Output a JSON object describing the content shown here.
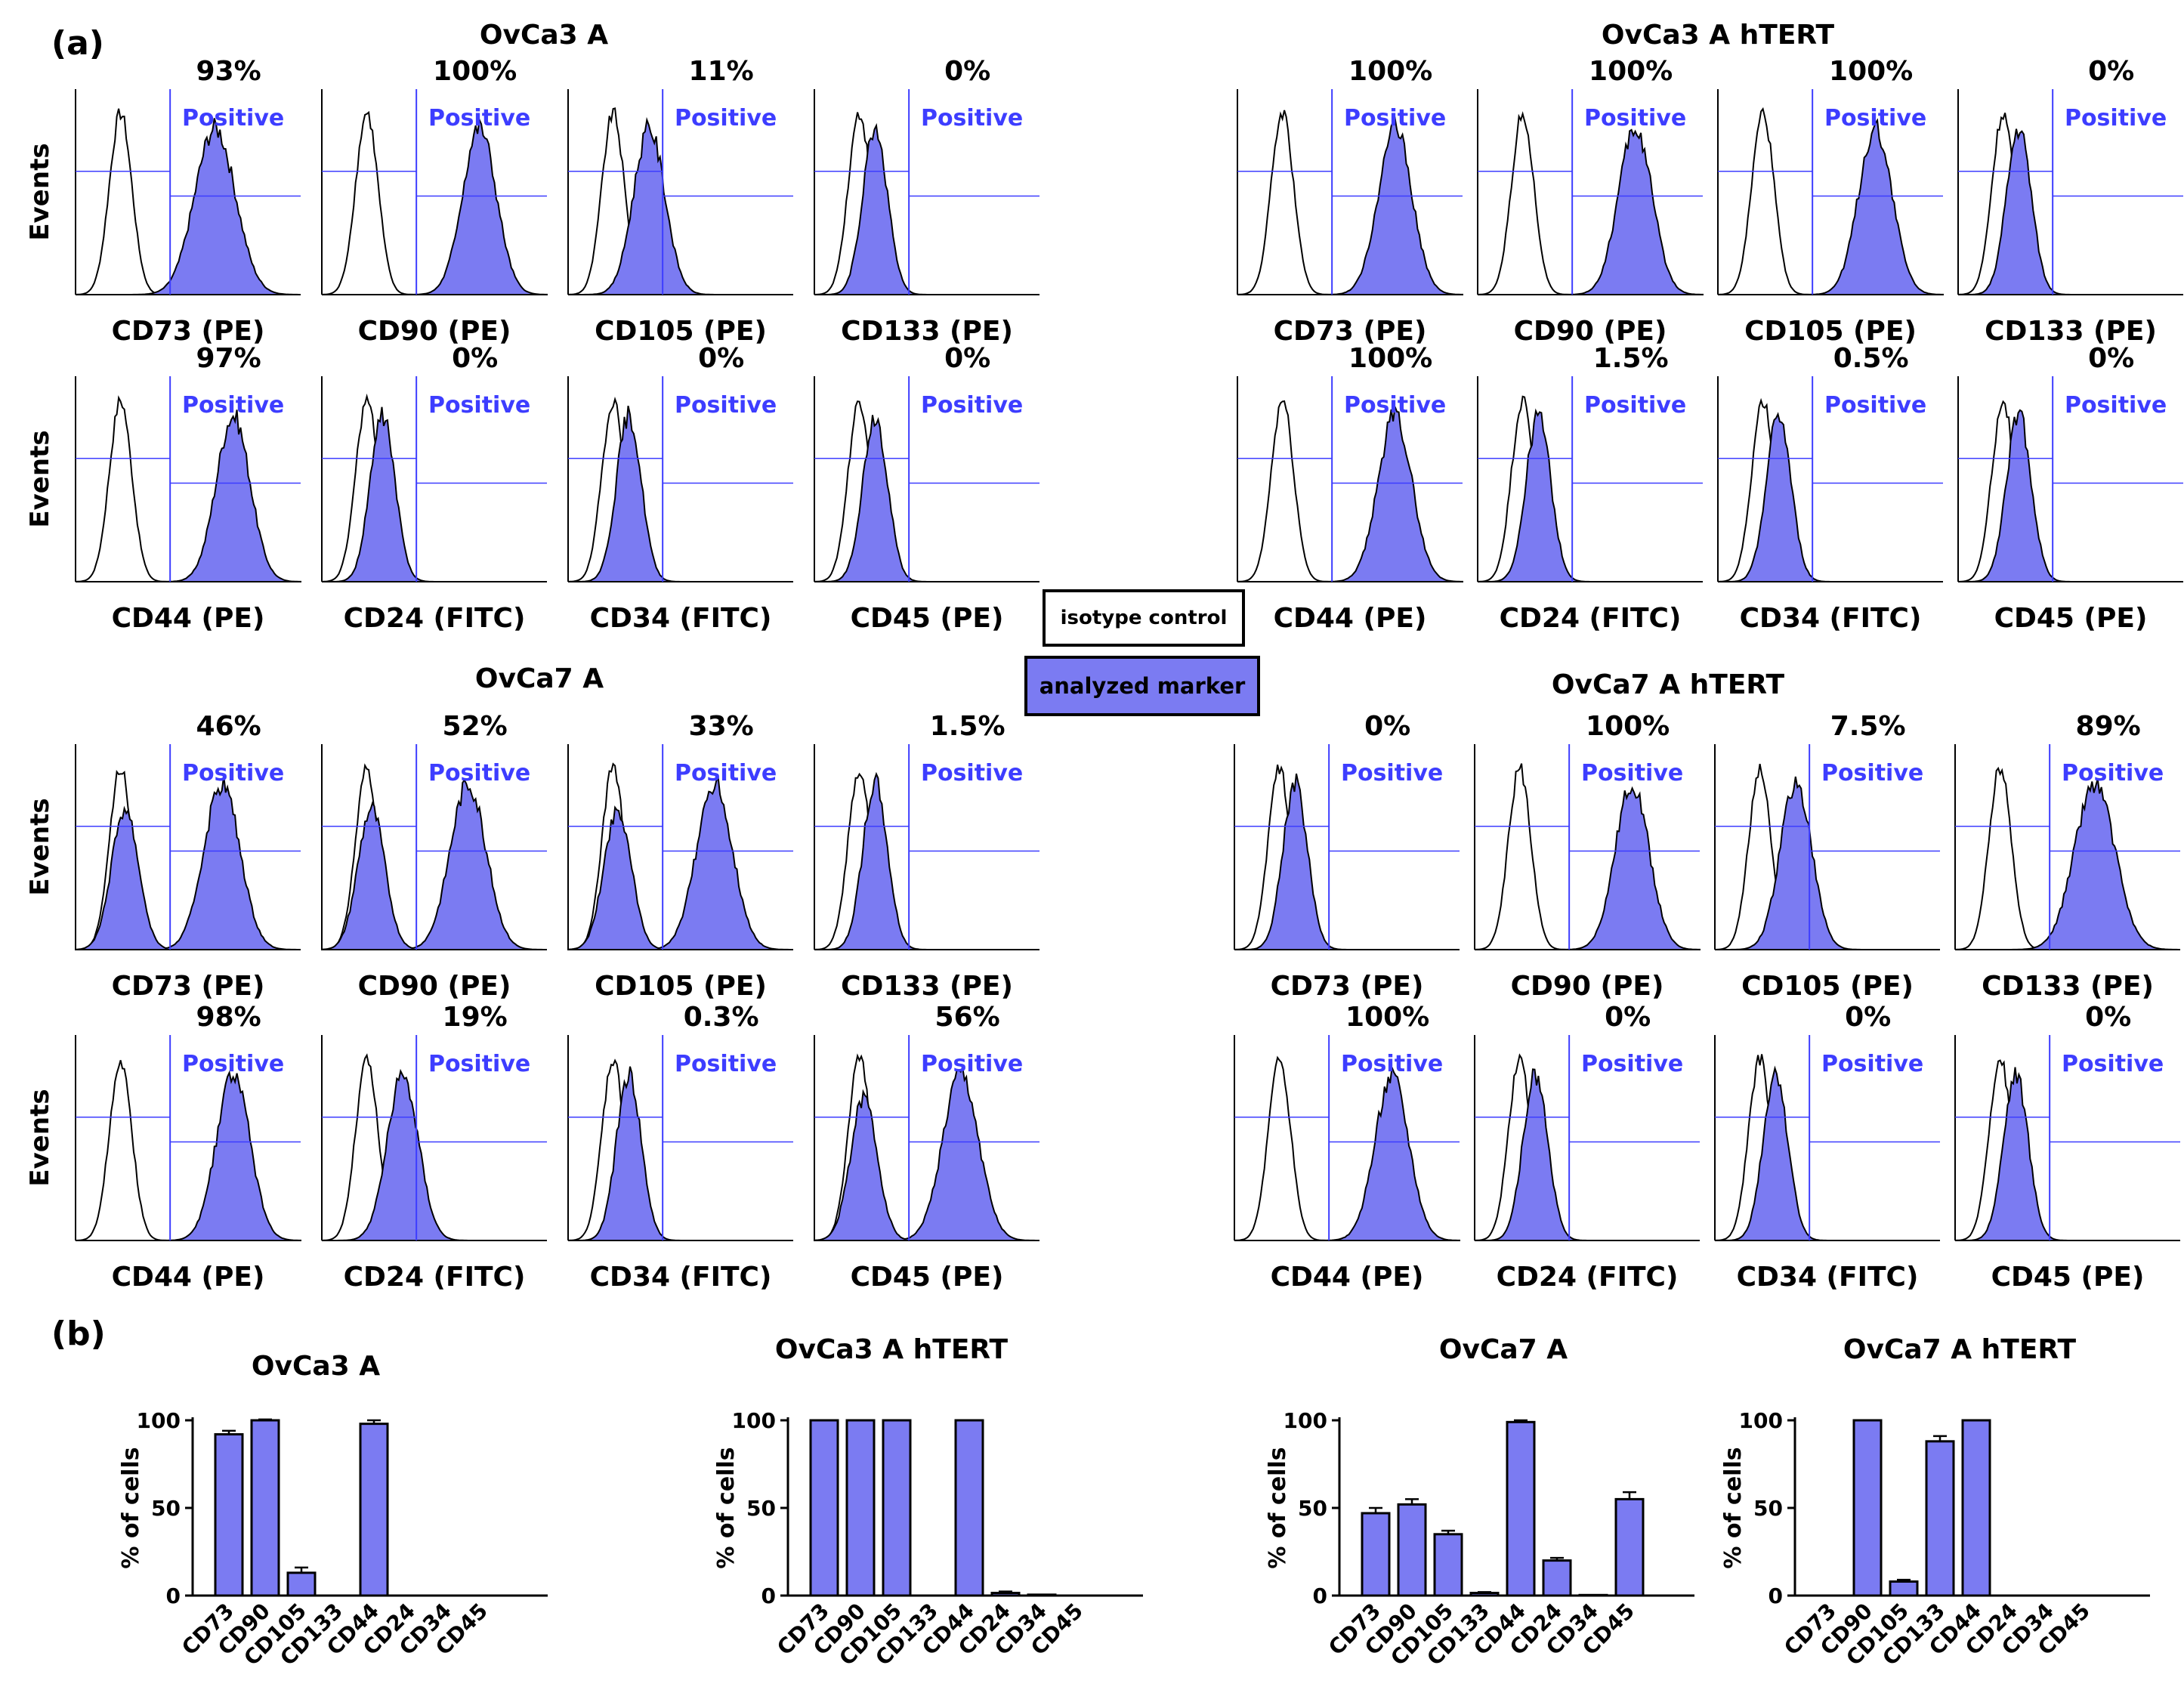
{
  "panel_labels": {
    "a": "(a)",
    "b": "(b)"
  },
  "colors": {
    "fill": "#7b7bf2",
    "gate": "#3d3dff",
    "positive_text": "#3d3dff",
    "ink": "#000000"
  },
  "axis_label_events": "Events",
  "positive_label": "Positive",
  "legend": {
    "isotype": "isotype control",
    "marker": "analyzed marker"
  },
  "chart_data": [
    {
      "type": "histogram_panel_group",
      "title": "OvCa3 A",
      "rows": [
        [
          {
            "marker": "CD73 (PE)",
            "percent": "93%"
          },
          {
            "marker": "CD90 (PE)",
            "percent": "100%"
          },
          {
            "marker": "CD105 (PE)",
            "percent": "11%"
          },
          {
            "marker": "CD133 (PE)",
            "percent": "0%"
          }
        ],
        [
          {
            "marker": "CD44 (PE)",
            "percent": "97%"
          },
          {
            "marker": "CD24 (FITC)",
            "percent": "0%"
          },
          {
            "marker": "CD34 (FITC)",
            "percent": "0%"
          },
          {
            "marker": "CD45 (PE)",
            "percent": "0%"
          }
        ]
      ]
    },
    {
      "type": "histogram_panel_group",
      "title": "OvCa3 A hTERT",
      "rows": [
        [
          {
            "marker": "CD73 (PE)",
            "percent": "100%"
          },
          {
            "marker": "CD90 (PE)",
            "percent": "100%"
          },
          {
            "marker": "CD105 (PE)",
            "percent": "100%"
          },
          {
            "marker": "CD133 (PE)",
            "percent": "0%"
          }
        ],
        [
          {
            "marker": "CD44 (PE)",
            "percent": "100%"
          },
          {
            "marker": "CD24 (FITC)",
            "percent": "1.5%"
          },
          {
            "marker": "CD34 (FITC)",
            "percent": "0.5%"
          },
          {
            "marker": "CD45 (PE)",
            "percent": "0%"
          }
        ]
      ]
    },
    {
      "type": "histogram_panel_group",
      "title": "OvCa7 A",
      "rows": [
        [
          {
            "marker": "CD73 (PE)",
            "percent": "46%"
          },
          {
            "marker": "CD90 (PE)",
            "percent": "52%"
          },
          {
            "marker": "CD105 (PE)",
            "percent": "33%"
          },
          {
            "marker": "CD133 (PE)",
            "percent": "1.5%"
          }
        ],
        [
          {
            "marker": "CD44 (PE)",
            "percent": "98%"
          },
          {
            "marker": "CD24 (FITC)",
            "percent": "19%"
          },
          {
            "marker": "CD34 (FITC)",
            "percent": "0.3%"
          },
          {
            "marker": "CD45 (PE)",
            "percent": "56%"
          }
        ]
      ]
    },
    {
      "type": "histogram_panel_group",
      "title": "OvCa7 A hTERT",
      "rows": [
        [
          {
            "marker": "CD73 (PE)",
            "percent": "0%"
          },
          {
            "marker": "CD90 (PE)",
            "percent": "100%"
          },
          {
            "marker": "CD105 (PE)",
            "percent": "7.5%"
          },
          {
            "marker": "CD133 (PE)",
            "percent": "89%"
          }
        ],
        [
          {
            "marker": "CD44 (PE)",
            "percent": "100%"
          },
          {
            "marker": "CD24 (FITC)",
            "percent": "0%"
          },
          {
            "marker": "CD34 (FITC)",
            "percent": "0%"
          },
          {
            "marker": "CD45 (PE)",
            "percent": "0%"
          }
        ]
      ]
    },
    {
      "type": "bar",
      "title": "OvCa3 A",
      "ylabel": "% of cells",
      "ylim": [
        0,
        100
      ],
      "yticks": [
        0,
        50,
        100
      ],
      "categories": [
        "CD73",
        "CD90",
        "CD105",
        "CD133",
        "CD44",
        "CD24",
        "CD34",
        "CD45"
      ],
      "values": [
        92,
        100,
        13,
        0,
        98,
        0,
        0,
        0
      ],
      "errors": [
        2,
        0.5,
        3,
        0,
        2,
        0,
        0,
        0
      ]
    },
    {
      "type": "bar",
      "title": "OvCa3 A hTERT",
      "ylabel": "% of cells",
      "ylim": [
        0,
        100
      ],
      "yticks": [
        0,
        50,
        100
      ],
      "categories": [
        "CD73",
        "CD90",
        "CD105",
        "CD133",
        "CD44",
        "CD24",
        "CD34",
        "CD45"
      ],
      "values": [
        100,
        100,
        100,
        0,
        100,
        1.5,
        0.5,
        0
      ],
      "errors": [
        0,
        0,
        0,
        0,
        0,
        0.8,
        0,
        0
      ]
    },
    {
      "type": "bar",
      "title": "OvCa7 A",
      "ylabel": "% of cells",
      "ylim": [
        0,
        100
      ],
      "yticks": [
        0,
        50,
        100
      ],
      "categories": [
        "CD73",
        "CD90",
        "CD105",
        "CD133",
        "CD44",
        "CD24",
        "CD34",
        "CD45"
      ],
      "values": [
        47,
        52,
        35,
        1.5,
        99,
        20,
        0.3,
        55
      ],
      "errors": [
        3,
        3,
        2,
        0.5,
        1,
        1.5,
        0,
        4
      ]
    },
    {
      "type": "bar",
      "title": "OvCa7 A hTERT",
      "ylabel": "% of cells",
      "ylim": [
        0,
        100
      ],
      "yticks": [
        0,
        50,
        100
      ],
      "categories": [
        "CD73",
        "CD90",
        "CD105",
        "CD133",
        "CD44",
        "CD24",
        "CD34",
        "CD45"
      ],
      "values": [
        0,
        100,
        8,
        88,
        100,
        0,
        0,
        0
      ],
      "errors": [
        0,
        0,
        1,
        3,
        0,
        0,
        0,
        0
      ]
    }
  ]
}
